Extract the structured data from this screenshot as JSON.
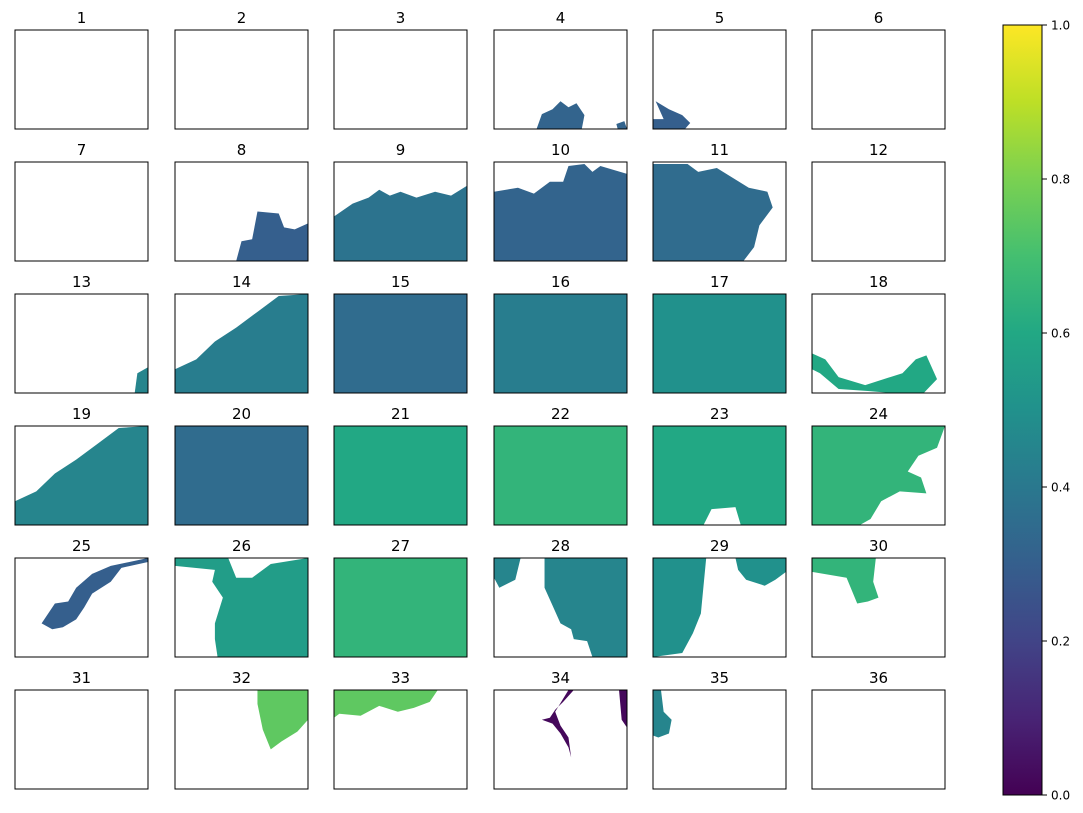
{
  "chart_data": {
    "type": "heatmap",
    "description_of_grid": "6x6 small-multiple tiles of an elevation-like field colored with viridis",
    "colormap": "viridis",
    "panels": [
      {
        "title": "1",
        "coverage": "empty"
      },
      {
        "title": "2",
        "coverage": "empty"
      },
      {
        "title": "3",
        "coverage": "empty"
      },
      {
        "title": "4",
        "coverage": "bottom-strip",
        "level": 0.32
      },
      {
        "title": "5",
        "coverage": "bottom-left-sliver",
        "level": 0.3
      },
      {
        "title": "6",
        "coverage": "empty"
      },
      {
        "title": "7",
        "coverage": "empty"
      },
      {
        "title": "8",
        "coverage": "bottom-right",
        "level": 0.3
      },
      {
        "title": "9",
        "coverage": "lower-two-thirds",
        "level": 0.38
      },
      {
        "title": "10",
        "coverage": "most-except-top",
        "level": 0.32
      },
      {
        "title": "11",
        "coverage": "most-except-right",
        "level": 0.35
      },
      {
        "title": "12",
        "coverage": "empty"
      },
      {
        "title": "13",
        "coverage": "bottom-right-sliver",
        "level": 0.45
      },
      {
        "title": "14",
        "coverage": "diagonal-right",
        "level": 0.42
      },
      {
        "title": "15",
        "coverage": "full",
        "level": 0.35
      },
      {
        "title": "16",
        "coverage": "full",
        "level": 0.42
      },
      {
        "title": "17",
        "coverage": "full",
        "level": 0.5
      },
      {
        "title": "18",
        "coverage": "bottom-band",
        "level": 0.6
      },
      {
        "title": "19",
        "coverage": "diagonal-right",
        "level": 0.45
      },
      {
        "title": "20",
        "coverage": "full",
        "level": 0.35
      },
      {
        "title": "21",
        "coverage": "full",
        "level": 0.6
      },
      {
        "title": "22",
        "coverage": "full",
        "level": 0.65
      },
      {
        "title": "23",
        "coverage": "full-with-notch",
        "level": 0.6
      },
      {
        "title": "24",
        "coverage": "left-and-top",
        "level": 0.65
      },
      {
        "title": "25",
        "coverage": "lake-shape",
        "level": 0.3
      },
      {
        "title": "26",
        "coverage": "most-except-left",
        "level": 0.55
      },
      {
        "title": "27",
        "coverage": "full",
        "level": 0.65
      },
      {
        "title": "28",
        "coverage": "right-half-with-lake",
        "level": 0.45
      },
      {
        "title": "29",
        "coverage": "left-and-top-right",
        "level": 0.5
      },
      {
        "title": "30",
        "coverage": "top-left",
        "level": 0.65
      },
      {
        "title": "31",
        "coverage": "empty"
      },
      {
        "title": "32",
        "coverage": "top-right",
        "level": 0.75
      },
      {
        "title": "33",
        "coverage": "top-band",
        "level": 0.75
      },
      {
        "title": "34",
        "coverage": "thin-lake",
        "level": 0.02
      },
      {
        "title": "35",
        "coverage": "top-left-sliver",
        "level": 0.45
      },
      {
        "title": "36",
        "coverage": "empty"
      }
    ],
    "colorbar": {
      "ticks": [
        "0.0",
        "0.2",
        "0.4",
        "0.6",
        "0.8",
        "1.0"
      ],
      "tick_values": [
        0.0,
        0.2,
        0.4,
        0.6,
        0.8,
        1.0
      ],
      "range": [
        0,
        1
      ]
    }
  }
}
